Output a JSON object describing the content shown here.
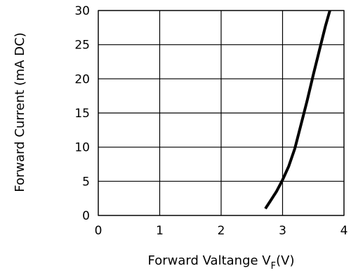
{
  "chart_data": {
    "type": "line",
    "title": "",
    "xlabel": "Forward Valtange V",
    "xlabel_subscript": "F",
    "xlabel_suffix": "(V)",
    "ylabel": "Forward Current (mA DC)",
    "xlim": [
      0,
      4
    ],
    "ylim": [
      0,
      30
    ],
    "x_ticks": [
      "0",
      "1",
      "2",
      "3",
      "4"
    ],
    "y_ticks": [
      "0",
      "5",
      "10",
      "15",
      "20",
      "25",
      "30"
    ],
    "grid": true,
    "series": [
      {
        "x": [
          2.72,
          2.8,
          2.9,
          3.0,
          3.1,
          3.2,
          3.3,
          3.4,
          3.5,
          3.6,
          3.7,
          3.77
        ],
        "y": [
          1.0,
          2.1,
          3.5,
          5.2,
          7.2,
          9.8,
          13.3,
          16.8,
          20.6,
          24.2,
          27.8,
          30.0
        ]
      }
    ]
  }
}
